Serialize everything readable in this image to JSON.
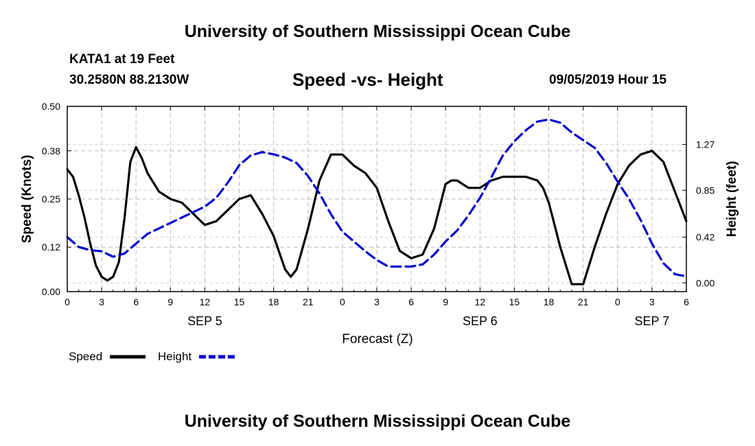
{
  "header": {
    "title_top": "University of Southern Mississippi Ocean Cube",
    "station": "KATA1 at 19 Feet",
    "coords": "30.2580N 88.2130W",
    "plot_title": "Speed -vs- Height",
    "timestamp": "09/05/2019 Hour 15",
    "title_bottom": "University of Southern Mississippi Ocean Cube"
  },
  "colors": {
    "speed": "#000000",
    "height": "#0000cc",
    "grid": "#b8b8b8"
  },
  "chart_data": {
    "type": "line",
    "title": "Speed -vs- Height",
    "xlabel": "Forecast (Z)",
    "ylabel": "Speed (Knots)",
    "ylabel_right": "Height (feet)",
    "xlim": [
      0,
      54
    ],
    "ylim": [
      0,
      0.5
    ],
    "ylim_right": [
      -0.08,
      1.62
    ],
    "x_ticks": [
      0,
      3,
      6,
      9,
      12,
      15,
      18,
      21,
      24,
      27,
      30,
      33,
      36,
      39,
      42,
      45,
      48,
      51,
      54
    ],
    "x_tick_labels": [
      "0",
      "3",
      "6",
      "9",
      "12",
      "15",
      "18",
      "21",
      "0",
      "3",
      "6",
      "9",
      "12",
      "15",
      "18",
      "21",
      "0",
      "3",
      "6"
    ],
    "date_labels": [
      {
        "x": 12,
        "label": "SEP 5"
      },
      {
        "x": 36,
        "label": "SEP 6"
      },
      {
        "x": 51,
        "label": "SEP 7"
      }
    ],
    "y_ticks": [
      0.0,
      0.12,
      0.25,
      0.38,
      0.5
    ],
    "y_tick_labels": [
      "0.00",
      "0.12",
      "0.25",
      "0.38",
      "0.50"
    ],
    "y_ticks_right": [
      0.0,
      0.42,
      0.85,
      1.27
    ],
    "y_tick_labels_right": [
      "0.00",
      "0.42",
      "0.85",
      "1.27"
    ],
    "grid": true,
    "legend": [
      {
        "name": "Speed",
        "style": "solid"
      },
      {
        "name": "Height",
        "style": "dashed"
      }
    ],
    "series": [
      {
        "name": "Speed",
        "axis": "left",
        "x": [
          0,
          0.5,
          1,
          1.5,
          2,
          2.5,
          3,
          3.5,
          4,
          4.5,
          5,
          5.5,
          6,
          6.5,
          7,
          8,
          9,
          10,
          11,
          12,
          13,
          14,
          15,
          16,
          17,
          18,
          19,
          19.5,
          20,
          21,
          22,
          23,
          24,
          25,
          26,
          27,
          28,
          29,
          30,
          31,
          32,
          33,
          33.5,
          34,
          35,
          36,
          37,
          38,
          39,
          40,
          41,
          41.5,
          42,
          43,
          44,
          45,
          46,
          47,
          48,
          49,
          50,
          51,
          52,
          53,
          54
        ],
        "y": [
          0.33,
          0.31,
          0.26,
          0.2,
          0.13,
          0.07,
          0.04,
          0.03,
          0.04,
          0.08,
          0.2,
          0.35,
          0.39,
          0.36,
          0.32,
          0.27,
          0.25,
          0.24,
          0.21,
          0.18,
          0.19,
          0.22,
          0.25,
          0.26,
          0.21,
          0.15,
          0.06,
          0.04,
          0.06,
          0.17,
          0.3,
          0.37,
          0.37,
          0.34,
          0.32,
          0.28,
          0.19,
          0.11,
          0.09,
          0.1,
          0.17,
          0.29,
          0.3,
          0.3,
          0.28,
          0.28,
          0.3,
          0.31,
          0.31,
          0.31,
          0.3,
          0.28,
          0.24,
          0.12,
          0.02,
          0.02,
          0.12,
          0.21,
          0.29,
          0.34,
          0.37,
          0.38,
          0.35,
          0.27,
          0.19
        ]
      },
      {
        "name": "Height",
        "axis": "right",
        "x": [
          0,
          1,
          2,
          3,
          4,
          5,
          6,
          7,
          8,
          9,
          10,
          11,
          12,
          13,
          14,
          15,
          16,
          17,
          18,
          19,
          20,
          21,
          22,
          23,
          24,
          25,
          26,
          27,
          28,
          29,
          30,
          31,
          32,
          33,
          34,
          35,
          36,
          37,
          38,
          39,
          40,
          41,
          42,
          43,
          44,
          45,
          46,
          47,
          48,
          49,
          50,
          51,
          52,
          53,
          54
        ],
        "y": [
          0.42,
          0.33,
          0.3,
          0.29,
          0.24,
          0.27,
          0.36,
          0.45,
          0.5,
          0.55,
          0.6,
          0.65,
          0.7,
          0.78,
          0.92,
          1.08,
          1.17,
          1.2,
          1.18,
          1.15,
          1.1,
          0.98,
          0.82,
          0.63,
          0.47,
          0.38,
          0.29,
          0.21,
          0.15,
          0.15,
          0.15,
          0.17,
          0.26,
          0.38,
          0.48,
          0.62,
          0.78,
          0.97,
          1.17,
          1.3,
          1.4,
          1.48,
          1.5,
          1.47,
          1.38,
          1.31,
          1.24,
          1.1,
          0.93,
          0.77,
          0.58,
          0.36,
          0.18,
          0.08,
          0.06
        ]
      }
    ]
  }
}
